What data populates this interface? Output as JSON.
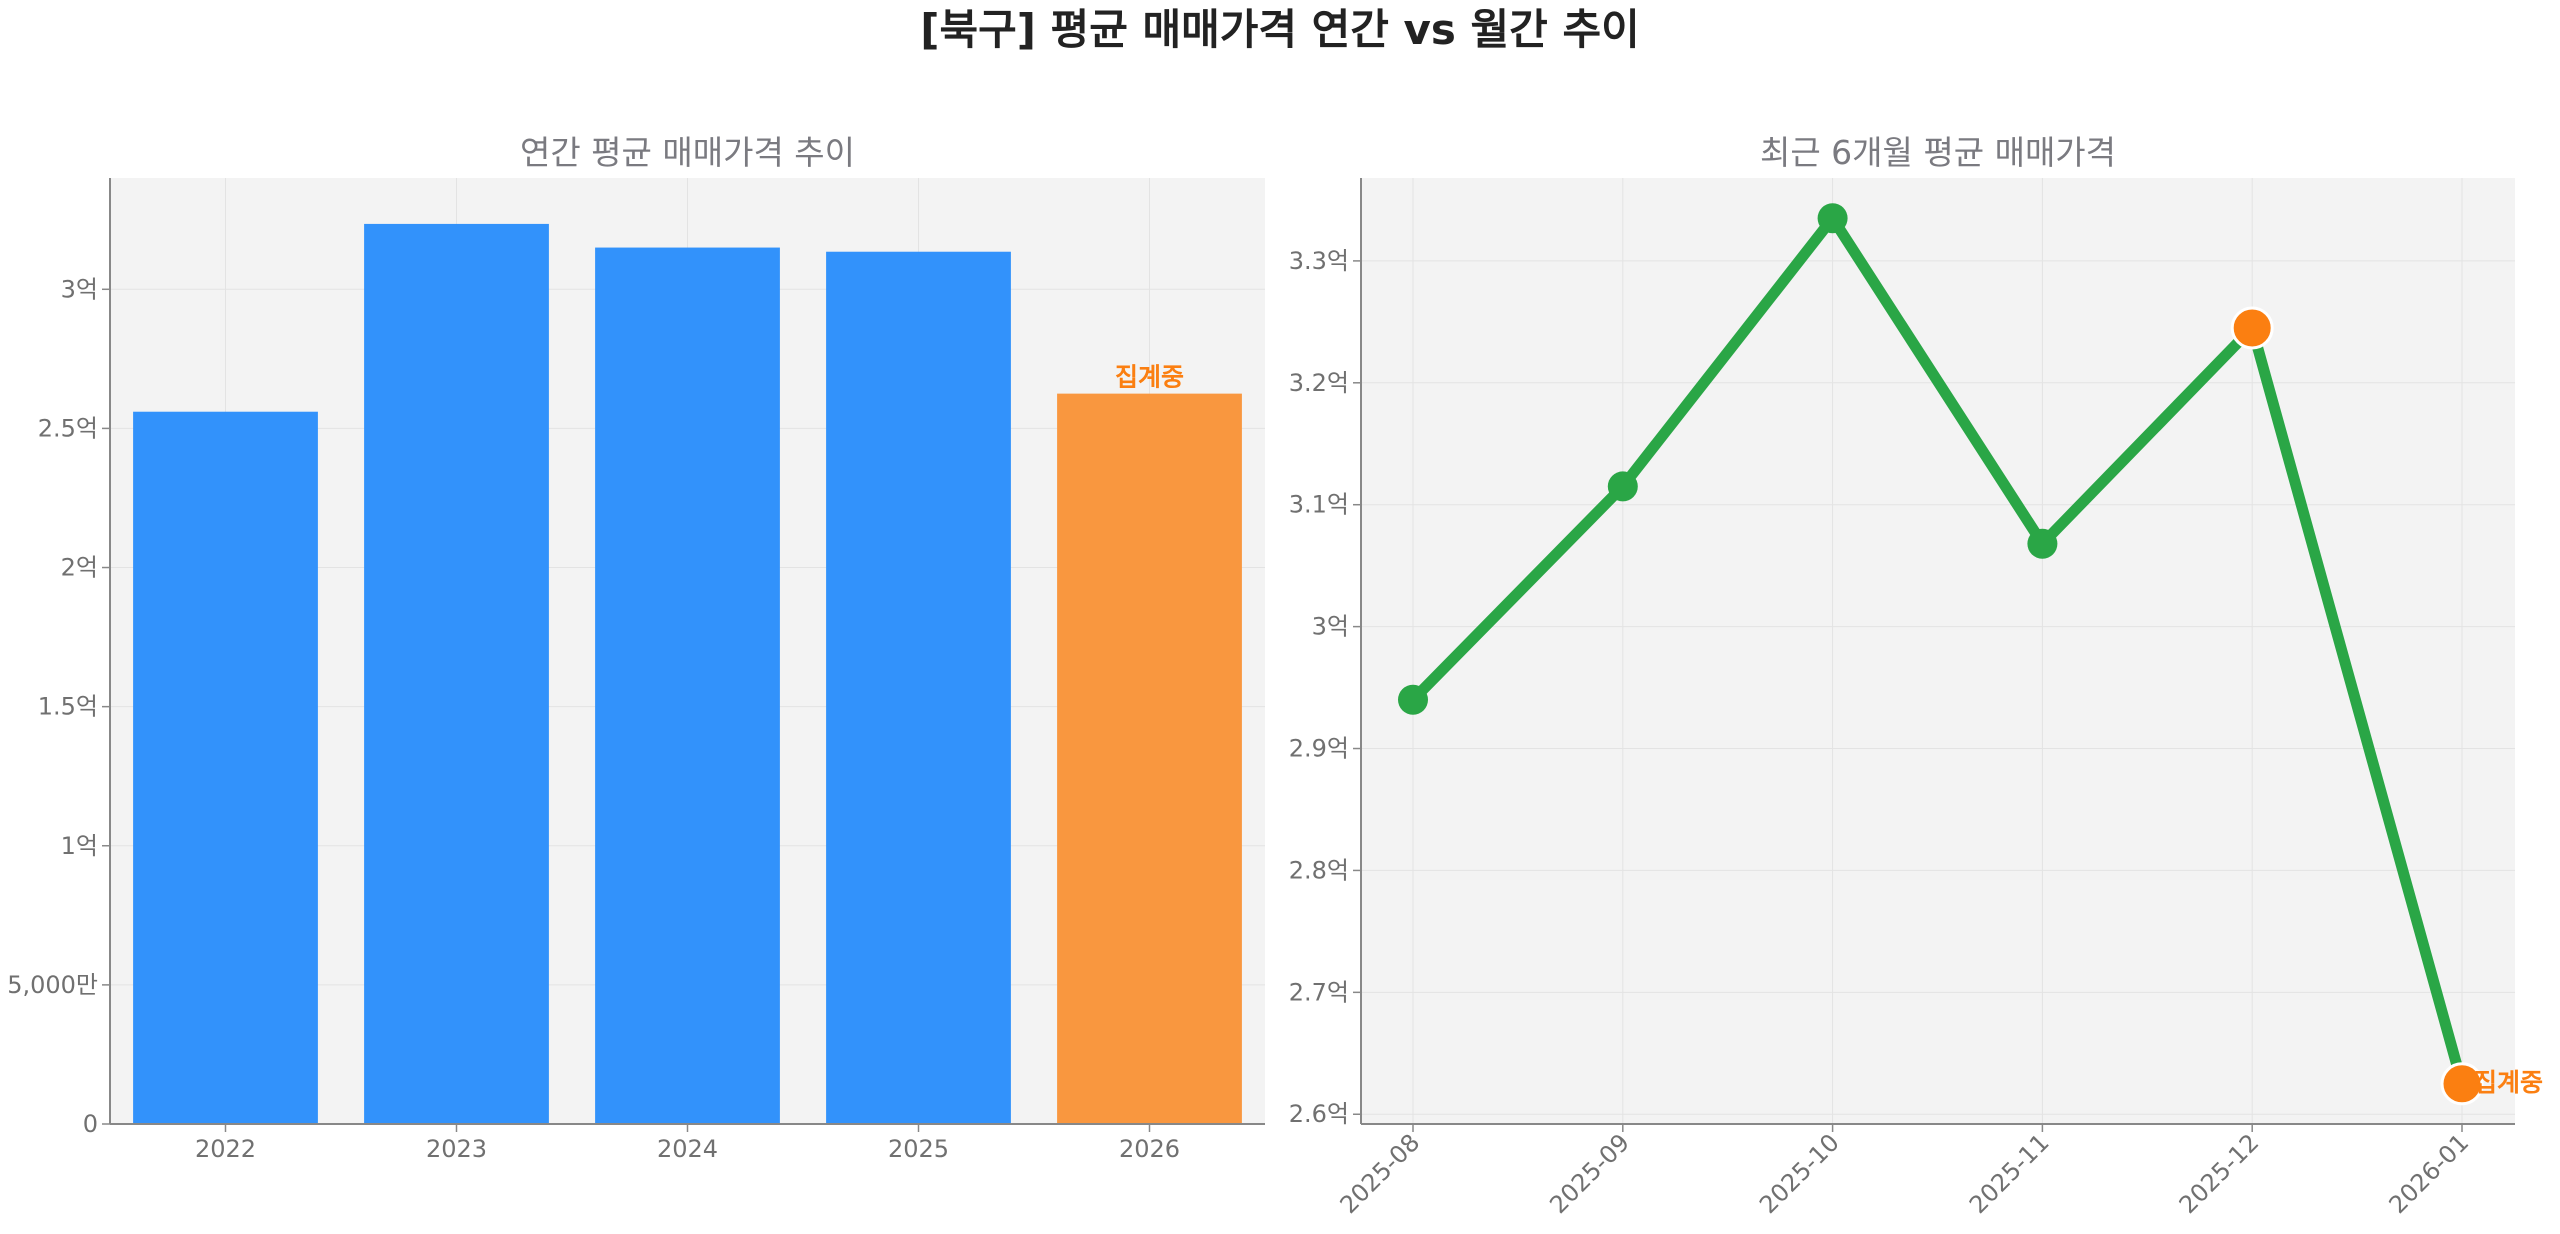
{
  "title": "[북구] 평균 매매가격 연간 vs 월간 추이",
  "colors": {
    "bar": "#3292fb",
    "bar_highlight": "#f9973f",
    "line": "#2aa646",
    "point": "#2aa646",
    "point_highlight": "#fb7f11",
    "annotation": "#fb7f11",
    "plot_bg": "#f3f3f3",
    "grid": "#e3e3e3",
    "axis": "#888888",
    "subtitle": "#7a7a80",
    "tick": "#707070"
  },
  "chart_data": [
    {
      "type": "bar",
      "title": "연간 평균 매매가격 추이",
      "categories": [
        "2022",
        "2023",
        "2024",
        "2025",
        "2026"
      ],
      "values": [
        256000000,
        323500000,
        315000000,
        313500000,
        262500000
      ],
      "highlight_index": 4,
      "annotation": "집계중",
      "ylim": [
        0,
        340000000
      ],
      "yticks": [
        0,
        50000000,
        100000000,
        150000000,
        200000000,
        250000000,
        300000000
      ],
      "ytick_labels": [
        "0",
        "5,000만",
        "1억",
        "1.5억",
        "2억",
        "2.5억",
        "3억"
      ],
      "grid": true
    },
    {
      "type": "line",
      "title": "최근 6개월 평균 매매가격",
      "x": [
        "2025-08",
        "2025-09",
        "2025-10",
        "2025-11",
        "2025-12",
        "2026-01"
      ],
      "values": [
        294000000,
        311500000,
        333500000,
        306800000,
        324500000,
        262500000
      ],
      "highlight_indices": [
        4,
        5
      ],
      "annotation": "집계중",
      "annotation_index": 5,
      "ylim": [
        259200000,
        336800000
      ],
      "yticks": [
        260000000,
        270000000,
        280000000,
        290000000,
        300000000,
        310000000,
        320000000,
        330000000
      ],
      "ytick_labels": [
        "2.6억",
        "2.7억",
        "2.8억",
        "2.9억",
        "3억",
        "3.1억",
        "3.2억",
        "3.3억"
      ],
      "grid": true
    }
  ]
}
